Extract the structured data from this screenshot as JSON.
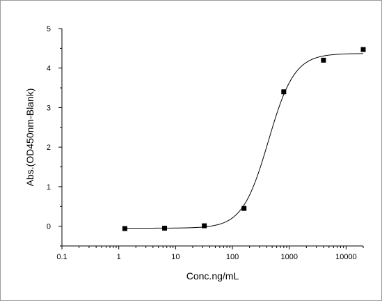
{
  "chart_data": {
    "type": "scatter",
    "title": "",
    "xlabel": "Conc.ng/mL",
    "ylabel": "Abs.(OD450nm-Blank)",
    "xscale": "log",
    "xlim": [
      0.1,
      20000
    ],
    "ylim": [
      -0.5,
      5
    ],
    "x_ticks": [
      0.1,
      1,
      10,
      100,
      1000,
      10000
    ],
    "x_tick_labels": [
      "0.1",
      "1",
      "10",
      "100",
      "1000",
      "10000"
    ],
    "y_ticks": [
      0,
      1,
      2,
      3,
      4,
      5
    ],
    "y_tick_labels": [
      "0",
      "1",
      "2",
      "3",
      "4",
      "5"
    ],
    "grid": false,
    "series": [
      {
        "marker": "square",
        "x": [
          1.28,
          6.4,
          32,
          160,
          800,
          4000,
          20000
        ],
        "y": [
          -0.06,
          -0.05,
          0.01,
          0.45,
          3.4,
          4.2,
          4.47
        ]
      }
    ],
    "fit_curve": {
      "bottom": -0.05,
      "top": 4.37,
      "ec50": 430,
      "hill": 1.9
    },
    "colors": {
      "line": "#000000",
      "marker": "#000000",
      "frame": "#9a9a9a"
    }
  }
}
